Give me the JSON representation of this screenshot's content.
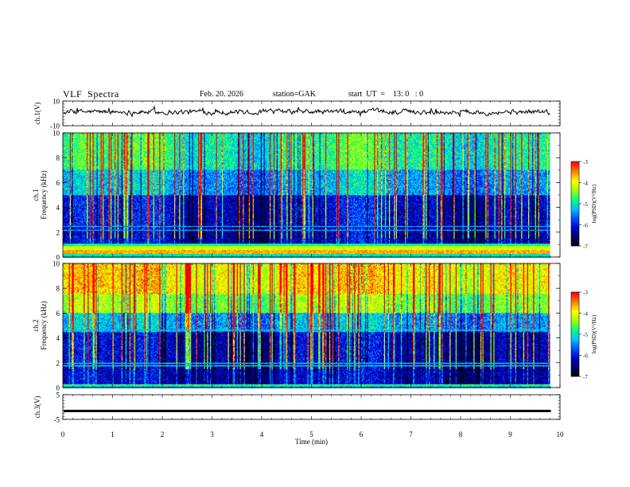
{
  "header": {
    "title": "VLF  Spectra",
    "date": "Feb. 20. 2026",
    "station": "station=GAK",
    "start": "start  UT  =    13: 0   : 0"
  },
  "chart_data": [
    {
      "type": "line",
      "panel": "ch1-waveform",
      "ylabel": "ch.1(V)",
      "ylim": [
        -10,
        10
      ],
      "yticks": [
        "10",
        "-10"
      ],
      "xlim": [
        0,
        10
      ],
      "color": "#000000"
    },
    {
      "type": "heatmap",
      "panel": "ch1-spectrogram",
      "ylabel": "ch.1\nFrequency  (kHz)",
      "ylim": [
        0,
        10
      ],
      "yticks": [
        "0",
        "2",
        "4",
        "6",
        "8",
        "10"
      ],
      "xlim": [
        0,
        9.8
      ],
      "colorbar": {
        "label": "log(PSD)(V²/Hz)",
        "ticks": [
          "-3",
          "-4",
          "-5",
          "-6",
          "-7"
        ],
        "range": [
          -7,
          -3
        ]
      }
    },
    {
      "type": "heatmap",
      "panel": "ch2-spectrogram",
      "ylabel": "ch.2\nFrequency  (kHz)",
      "ylim": [
        0,
        10
      ],
      "yticks": [
        "0",
        "2",
        "4",
        "6",
        "8",
        "10"
      ],
      "xlim": [
        0,
        9.8
      ],
      "colorbar": {
        "label": "log(PSD)(V²/Hz)",
        "ticks": [
          "-3",
          "-4",
          "-5",
          "-6",
          "-7"
        ],
        "range": [
          -7,
          -3
        ]
      }
    },
    {
      "type": "line",
      "panel": "ch3-waveform",
      "ylabel": "ch.3(V)",
      "ylim": [
        -5,
        5
      ],
      "yticks": [
        "5",
        "-5"
      ],
      "xlim": [
        0,
        10
      ],
      "level": -1.6
    },
    {
      "type": "axis",
      "panel": "time-axis",
      "xlabel": "Time  (min)",
      "xticks": [
        "0",
        "1",
        "2",
        "3",
        "4",
        "5",
        "6",
        "7",
        "8",
        "9",
        "10"
      ]
    }
  ],
  "colors": {
    "colormap": [
      "#000000",
      "#00006a",
      "#0000d0",
      "#0050ff",
      "#00c0ff",
      "#00ff80",
      "#a0ff00",
      "#ffff00",
      "#ff8000",
      "#ff0000",
      "#ffffff"
    ]
  }
}
